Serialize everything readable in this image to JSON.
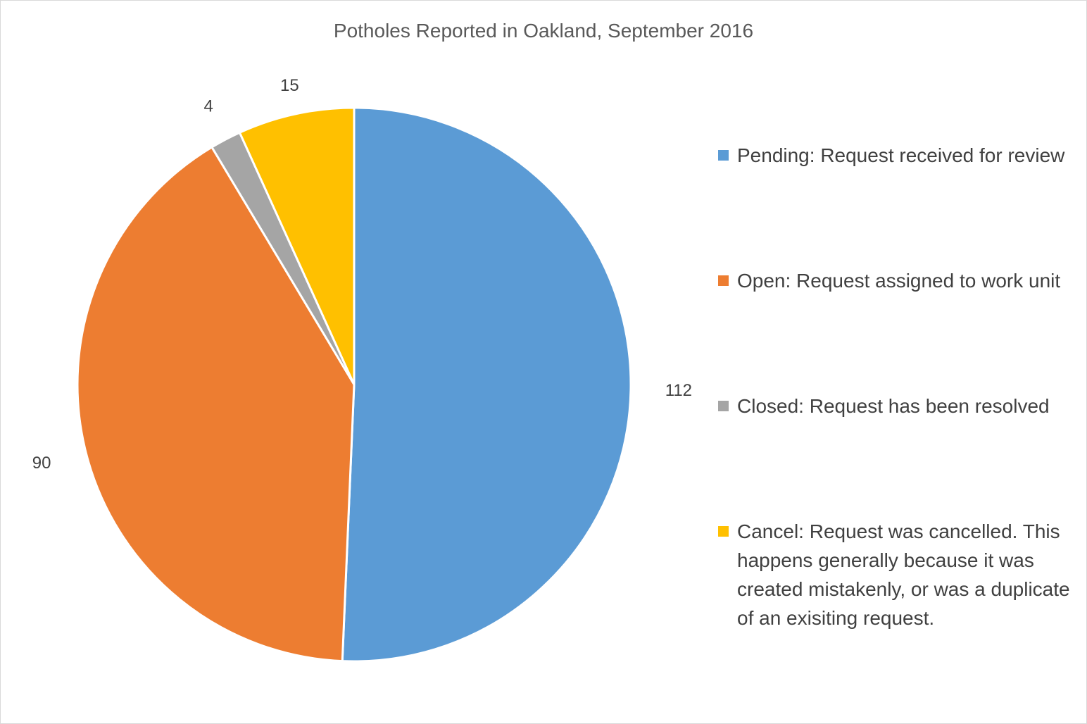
{
  "chart_data": {
    "type": "pie",
    "title": "Potholes Reported in Oakland, September 2016",
    "legend_position": "right",
    "slices": [
      {
        "name": "Pending: Request received for review",
        "value": 112,
        "color": "#5b9bd5"
      },
      {
        "name": "Open: Request assigned to work unit",
        "value": 90,
        "color": "#ed7d31"
      },
      {
        "name": "Closed: Request has been resolved",
        "value": 4,
        "color": "#a5a5a5"
      },
      {
        "name": "Cancel: Request was cancelled. This happens generally because it was created mistakenly, or was a duplicate of an exisiting request.",
        "value": 15,
        "color": "#ffc000"
      }
    ]
  }
}
